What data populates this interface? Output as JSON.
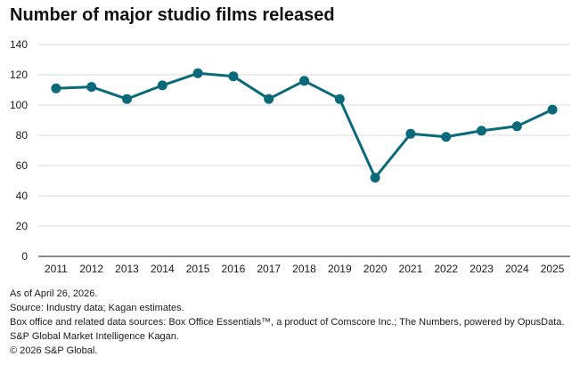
{
  "title": "Number of major studio films released",
  "chart_data": {
    "type": "line",
    "title": "Number of major studio films released",
    "xlabel": "",
    "ylabel": "",
    "x": [
      "2011",
      "2012",
      "2013",
      "2014",
      "2015",
      "2016",
      "2017",
      "2018",
      "2019",
      "2020",
      "2021",
      "2022",
      "2023",
      "2024",
      "2025"
    ],
    "series": [
      {
        "values": [
          111,
          112,
          104,
          113,
          121,
          119,
          104,
          116,
          104,
          52,
          81,
          79,
          83,
          86,
          97
        ]
      }
    ],
    "ylim": [
      0,
      140
    ],
    "yticks": [
      0,
      20,
      40,
      60,
      80,
      100,
      120,
      140
    ],
    "grid": "horizontal",
    "legend": "none",
    "color": "#0b6a7a",
    "grid_color": "#d9d9d9",
    "axis_color": "#1a1a1a"
  },
  "notes": {
    "as_of": "As of April 26, 2026.",
    "source": "Source: Industry data; Kagan estimates.",
    "box_office": "Box office and related data sources: Box Office Essentials™, a product of Comscore Inc.; The Numbers, powered by OpusData.",
    "org": "S&P Global Market Intelligence Kagan.",
    "copyright": "© 2026 S&P Global."
  }
}
